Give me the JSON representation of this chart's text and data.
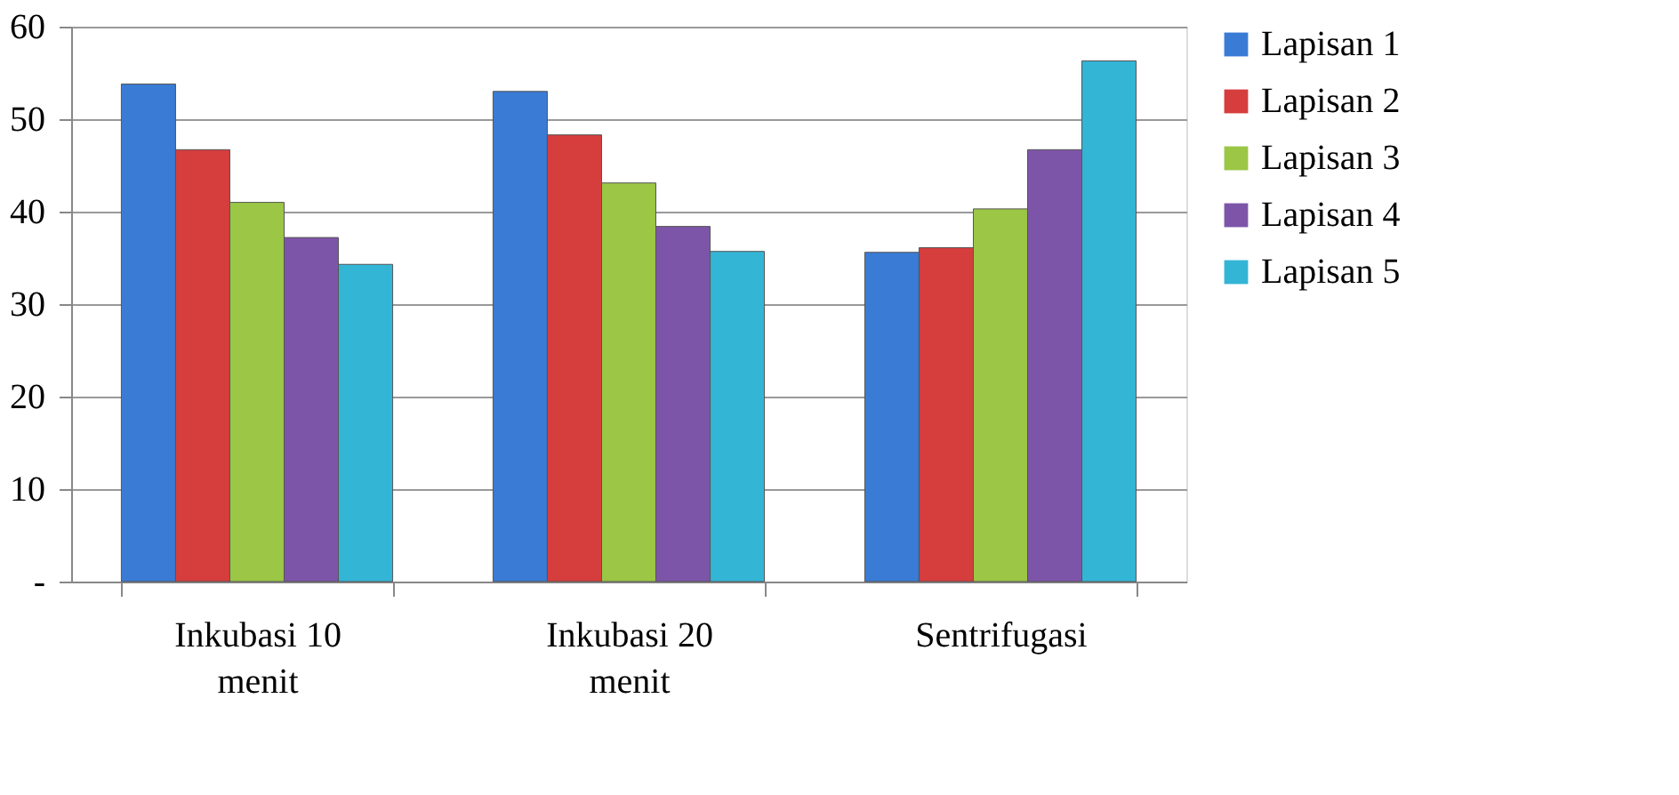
{
  "chart_data": {
    "type": "bar",
    "categories": [
      "Inkubasi 10 menit",
      "Inkubasi 20 menit",
      "Sentrifugasi"
    ],
    "series": [
      {
        "name": "Lapisan 1",
        "color": "#3a7bd5",
        "values": [
          53.8,
          53.0,
          35.6
        ]
      },
      {
        "name": "Lapisan 2",
        "color": "#d63d3d",
        "values": [
          46.7,
          48.3,
          36.1
        ]
      },
      {
        "name": "Lapisan 3",
        "color": "#9bc646",
        "values": [
          41.0,
          43.1,
          40.3
        ]
      },
      {
        "name": "Lapisan 4",
        "color": "#7d55a8",
        "values": [
          37.2,
          38.4,
          46.7
        ]
      },
      {
        "name": "Lapisan 5",
        "color": "#33b5d6",
        "values": [
          34.3,
          35.7,
          56.3
        ]
      }
    ],
    "ylim": [
      0,
      60
    ],
    "yticks": [
      {
        "value": 0,
        "label": "-"
      },
      10,
      20,
      30,
      40,
      50,
      60
    ],
    "grid": "y",
    "legend": "right"
  }
}
